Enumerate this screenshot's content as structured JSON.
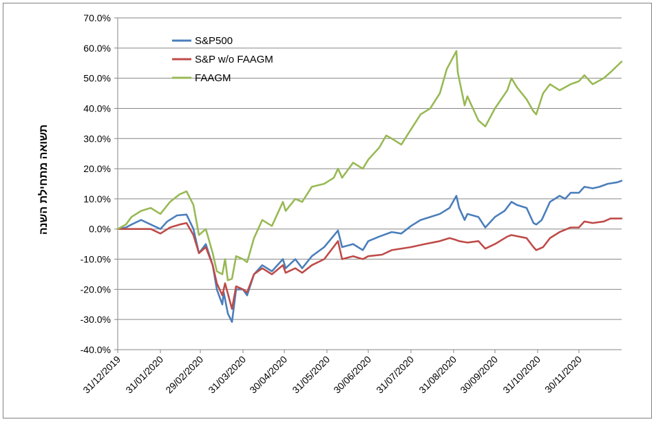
{
  "chart_data": {
    "type": "line",
    "title": "",
    "xlabel": "",
    "ylabel": "תשואה מתחילת השנה",
    "ylim": [
      -40,
      70
    ],
    "y_unit": "%",
    "y_ticks": [
      "70.0%",
      "60.0%",
      "50.0%",
      "40.0%",
      "30.0%",
      "20.0%",
      "10.0%",
      "0.0%",
      "-10.0%",
      "-20.0%",
      "-30.0%",
      "-40.0%"
    ],
    "x_ticks": [
      "31/12/2019",
      "31/01/2020",
      "29/02/2020",
      "31/03/2020",
      "30/04/2020",
      "31/05/2020",
      "30/06/2020",
      "31/07/2020",
      "31/08/2020",
      "30/09/2020",
      "31/10/2020",
      "30/11/2020"
    ],
    "grid": true,
    "legend_position": "top-left",
    "series": [
      {
        "name": "S&P500",
        "color": "#4a7ebb",
        "points": [
          [
            "2019-12-31",
            0
          ],
          [
            "2020-01-06",
            0.5
          ],
          [
            "2020-01-10",
            1.5
          ],
          [
            "2020-01-17",
            3
          ],
          [
            "2020-01-24",
            1.5
          ],
          [
            "2020-01-31",
            0
          ],
          [
            "2020-02-05",
            2.5
          ],
          [
            "2020-02-12",
            4.5
          ],
          [
            "2020-02-19",
            4.8
          ],
          [
            "2020-02-24",
            0
          ],
          [
            "2020-02-28",
            -8
          ],
          [
            "2020-03-04",
            -5
          ],
          [
            "2020-03-09",
            -12
          ],
          [
            "2020-03-12",
            -20
          ],
          [
            "2020-03-16",
            -25
          ],
          [
            "2020-03-17",
            -21
          ],
          [
            "2020-03-20",
            -28
          ],
          [
            "2020-03-23",
            -30.8
          ],
          [
            "2020-03-26",
            -20
          ],
          [
            "2020-03-31",
            -20
          ],
          [
            "2020-04-03",
            -22
          ],
          [
            "2020-04-08",
            -15
          ],
          [
            "2020-04-14",
            -12
          ],
          [
            "2020-04-21",
            -14
          ],
          [
            "2020-04-29",
            -10
          ],
          [
            "2020-05-01",
            -13
          ],
          [
            "2020-05-08",
            -10
          ],
          [
            "2020-05-13",
            -13
          ],
          [
            "2020-05-20",
            -9
          ],
          [
            "2020-05-29",
            -6
          ],
          [
            "2020-06-08",
            -0.5
          ],
          [
            "2020-06-11",
            -6
          ],
          [
            "2020-06-19",
            -5
          ],
          [
            "2020-06-26",
            -7
          ],
          [
            "2020-06-30",
            -4
          ],
          [
            "2020-07-08",
            -2.5
          ],
          [
            "2020-07-17",
            -1
          ],
          [
            "2020-07-24",
            -1.5
          ],
          [
            "2020-07-31",
            1
          ],
          [
            "2020-08-07",
            3
          ],
          [
            "2020-08-14",
            4
          ],
          [
            "2020-08-21",
            5
          ],
          [
            "2020-08-28",
            7
          ],
          [
            "2020-09-02",
            11
          ],
          [
            "2020-09-04",
            7
          ],
          [
            "2020-09-08",
            3
          ],
          [
            "2020-09-10",
            5
          ],
          [
            "2020-09-18",
            4
          ],
          [
            "2020-09-23",
            0.5
          ],
          [
            "2020-09-30",
            4
          ],
          [
            "2020-10-07",
            6
          ],
          [
            "2020-10-12",
            9
          ],
          [
            "2020-10-16",
            8
          ],
          [
            "2020-10-23",
            7
          ],
          [
            "2020-10-28",
            2
          ],
          [
            "2020-10-30",
            1.5
          ],
          [
            "2020-11-03",
            3
          ],
          [
            "2020-11-09",
            9
          ],
          [
            "2020-11-16",
            11
          ],
          [
            "2020-11-20",
            10
          ],
          [
            "2020-11-24",
            12
          ],
          [
            "2020-11-30",
            12
          ],
          [
            "2020-12-04",
            14
          ],
          [
            "2020-12-10",
            13.5
          ],
          [
            "2020-12-15",
            14
          ],
          [
            "2020-12-21",
            15
          ],
          [
            "2020-12-28",
            15.5
          ],
          [
            "2020-12-31",
            16
          ]
        ]
      },
      {
        "name": "S&P w/o FAAGM",
        "color": "#be4b48",
        "points": [
          [
            "2019-12-31",
            0
          ],
          [
            "2020-01-10",
            0
          ],
          [
            "2020-01-24",
            0
          ],
          [
            "2020-01-31",
            -1.5
          ],
          [
            "2020-02-07",
            0.5
          ],
          [
            "2020-02-14",
            1.5
          ],
          [
            "2020-02-19",
            2
          ],
          [
            "2020-02-24",
            -2
          ],
          [
            "2020-02-28",
            -8
          ],
          [
            "2020-03-04",
            -6
          ],
          [
            "2020-03-09",
            -12
          ],
          [
            "2020-03-12",
            -18
          ],
          [
            "2020-03-16",
            -22
          ],
          [
            "2020-03-18",
            -18
          ],
          [
            "2020-03-23",
            -26.5
          ],
          [
            "2020-03-26",
            -19
          ],
          [
            "2020-03-31",
            -20
          ],
          [
            "2020-04-03",
            -21
          ],
          [
            "2020-04-08",
            -15
          ],
          [
            "2020-04-14",
            -13
          ],
          [
            "2020-04-21",
            -15
          ],
          [
            "2020-04-29",
            -12
          ],
          [
            "2020-05-01",
            -14.5
          ],
          [
            "2020-05-08",
            -13
          ],
          [
            "2020-05-13",
            -14.5
          ],
          [
            "2020-05-20",
            -12
          ],
          [
            "2020-05-29",
            -10
          ],
          [
            "2020-06-08",
            -4
          ],
          [
            "2020-06-11",
            -10
          ],
          [
            "2020-06-19",
            -9
          ],
          [
            "2020-06-26",
            -10
          ],
          [
            "2020-06-30",
            -9
          ],
          [
            "2020-07-10",
            -8.5
          ],
          [
            "2020-07-17",
            -7
          ],
          [
            "2020-07-31",
            -6
          ],
          [
            "2020-08-10",
            -5
          ],
          [
            "2020-08-21",
            -4
          ],
          [
            "2020-08-28",
            -3
          ],
          [
            "2020-09-01",
            -3.5
          ],
          [
            "2020-09-04",
            -4
          ],
          [
            "2020-09-10",
            -4.5
          ],
          [
            "2020-09-18",
            -4
          ],
          [
            "2020-09-23",
            -6.5
          ],
          [
            "2020-09-30",
            -5
          ],
          [
            "2020-10-09",
            -2.5
          ],
          [
            "2020-10-12",
            -2
          ],
          [
            "2020-10-23",
            -3
          ],
          [
            "2020-10-28",
            -6
          ],
          [
            "2020-10-30",
            -7
          ],
          [
            "2020-11-04",
            -6
          ],
          [
            "2020-11-09",
            -3
          ],
          [
            "2020-11-16",
            -1
          ],
          [
            "2020-11-24",
            0.5
          ],
          [
            "2020-11-30",
            0.5
          ],
          [
            "2020-12-04",
            2.5
          ],
          [
            "2020-12-10",
            2
          ],
          [
            "2020-12-18",
            2.5
          ],
          [
            "2020-12-23",
            3.5
          ],
          [
            "2020-12-31",
            3.5
          ]
        ]
      },
      {
        "name": "FAAGM",
        "color": "#98b954",
        "points": [
          [
            "2019-12-31",
            0
          ],
          [
            "2020-01-06",
            1.5
          ],
          [
            "2020-01-10",
            4
          ],
          [
            "2020-01-17",
            6
          ],
          [
            "2020-01-24",
            7
          ],
          [
            "2020-01-31",
            5
          ],
          [
            "2020-02-07",
            9
          ],
          [
            "2020-02-14",
            11.5
          ],
          [
            "2020-02-19",
            12.5
          ],
          [
            "2020-02-24",
            8
          ],
          [
            "2020-02-28",
            -2
          ],
          [
            "2020-03-04",
            0
          ],
          [
            "2020-03-09",
            -8
          ],
          [
            "2020-03-12",
            -14
          ],
          [
            "2020-03-16",
            -15
          ],
          [
            "2020-03-18",
            -10
          ],
          [
            "2020-03-20",
            -17
          ],
          [
            "2020-03-23",
            -16.5
          ],
          [
            "2020-03-26",
            -9
          ],
          [
            "2020-03-31",
            -10
          ],
          [
            "2020-04-03",
            -11
          ],
          [
            "2020-04-08",
            -3
          ],
          [
            "2020-04-14",
            3
          ],
          [
            "2020-04-21",
            1
          ],
          [
            "2020-04-29",
            9
          ],
          [
            "2020-05-01",
            6
          ],
          [
            "2020-05-08",
            10
          ],
          [
            "2020-05-13",
            9
          ],
          [
            "2020-05-20",
            14
          ],
          [
            "2020-05-29",
            15
          ],
          [
            "2020-06-05",
            17
          ],
          [
            "2020-06-08",
            20
          ],
          [
            "2020-06-11",
            17
          ],
          [
            "2020-06-19",
            22
          ],
          [
            "2020-06-26",
            20
          ],
          [
            "2020-06-30",
            23
          ],
          [
            "2020-07-08",
            27
          ],
          [
            "2020-07-13",
            31
          ],
          [
            "2020-07-17",
            30
          ],
          [
            "2020-07-24",
            28
          ],
          [
            "2020-07-31",
            33
          ],
          [
            "2020-08-07",
            38
          ],
          [
            "2020-08-14",
            40
          ],
          [
            "2020-08-21",
            45
          ],
          [
            "2020-08-26",
            53
          ],
          [
            "2020-09-02",
            59
          ],
          [
            "2020-09-03",
            52
          ],
          [
            "2020-09-08",
            41
          ],
          [
            "2020-09-10",
            44
          ],
          [
            "2020-09-18",
            36
          ],
          [
            "2020-09-23",
            34
          ],
          [
            "2020-09-30",
            40
          ],
          [
            "2020-10-09",
            46
          ],
          [
            "2020-10-12",
            50
          ],
          [
            "2020-10-16",
            47
          ],
          [
            "2020-10-23",
            43
          ],
          [
            "2020-10-28",
            39
          ],
          [
            "2020-10-30",
            38
          ],
          [
            "2020-11-04",
            45
          ],
          [
            "2020-11-09",
            48
          ],
          [
            "2020-11-16",
            46
          ],
          [
            "2020-11-24",
            48
          ],
          [
            "2020-11-30",
            49
          ],
          [
            "2020-12-04",
            51
          ],
          [
            "2020-12-10",
            48
          ],
          [
            "2020-12-18",
            50
          ],
          [
            "2020-12-23",
            52
          ],
          [
            "2020-12-31",
            55.5
          ]
        ]
      }
    ]
  }
}
